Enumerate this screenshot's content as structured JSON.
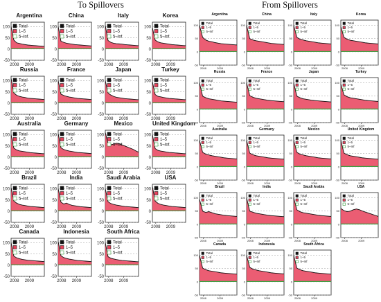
{
  "figure": {
    "left_title": "To Spillovers",
    "right_title": "From Spillovers"
  },
  "chart_data": {
    "type": "area",
    "panels_per_figure": 19,
    "countries": [
      "Argentina",
      "China",
      "Italy",
      "Korea",
      "Russia",
      "France",
      "Japan",
      "Turkey",
      "Australia",
      "Germany",
      "Mexico",
      "United Kingdom",
      "Brazil",
      "India",
      "Saudi Arabia",
      "USA",
      "Canada",
      "Indonesia",
      "South Africa"
    ],
    "series_names": [
      "Total",
      "1–5",
      "5–Inf"
    ],
    "series_colors": {
      "Total": "#111111",
      "1–5": "#e8415a",
      "5–Inf": "#3aa040"
    },
    "x_ticks": [
      "2008",
      "2009"
    ],
    "y_ticks": [
      100,
      50,
      0,
      -50
    ],
    "ylim": [
      -50,
      120
    ],
    "x": [
      0,
      1,
      2,
      3,
      4,
      5,
      6,
      7,
      8,
      9,
      10,
      11,
      12
    ],
    "to_spillovers": {
      "Argentina": [
        100,
        40,
        28,
        25,
        22,
        20,
        18,
        17,
        16,
        15,
        14,
        13,
        12
      ],
      "China": [
        100,
        35,
        30,
        26,
        24,
        22,
        20,
        19,
        18,
        17,
        16,
        15,
        14
      ],
      "Italy": [
        105,
        38,
        30,
        26,
        24,
        23,
        22,
        20,
        19,
        18,
        17,
        16,
        15
      ],
      "Korea": [
        95,
        40,
        32,
        28,
        26,
        24,
        22,
        20,
        19,
        18,
        17,
        16,
        15
      ],
      "Russia": [
        110,
        45,
        35,
        30,
        27,
        25,
        22,
        21,
        20,
        19,
        18,
        17,
        16
      ],
      "France": [
        100,
        40,
        34,
        30,
        27,
        25,
        23,
        21,
        20,
        19,
        18,
        17,
        16
      ],
      "Japan": [
        100,
        45,
        36,
        30,
        26,
        24,
        22,
        20,
        19,
        18,
        17,
        16,
        15
      ],
      "Turkey": [
        95,
        38,
        30,
        28,
        25,
        23,
        21,
        20,
        19,
        18,
        17,
        16,
        15
      ],
      "Australia": [
        100,
        40,
        32,
        28,
        26,
        24,
        22,
        20,
        19,
        18,
        17,
        16,
        15
      ],
      "Germany": [
        105,
        42,
        34,
        30,
        27,
        25,
        23,
        21,
        20,
        19,
        18,
        17,
        16
      ],
      "Mexico": [
        110,
        60,
        55,
        58,
        62,
        60,
        55,
        50,
        45,
        40,
        35,
        28,
        22
      ],
      "United Kingdom": [
        100,
        38,
        30,
        27,
        25,
        23,
        21,
        20,
        19,
        18,
        17,
        16,
        15
      ],
      "Brazil": [
        105,
        45,
        36,
        30,
        27,
        25,
        23,
        21,
        20,
        19,
        18,
        17,
        16
      ],
      "India": [
        100,
        40,
        32,
        36,
        30,
        26,
        24,
        22,
        20,
        19,
        18,
        17,
        16
      ],
      "Saudi Arabia": [
        100,
        42,
        34,
        30,
        27,
        25,
        23,
        21,
        20,
        19,
        18,
        17,
        16
      ],
      "USA": [
        110,
        45,
        35,
        30,
        27,
        25,
        23,
        21,
        20,
        19,
        18,
        17,
        16
      ],
      "Canada": [
        100,
        40,
        33,
        29,
        26,
        24,
        22,
        21,
        20,
        19,
        18,
        17,
        16
      ],
      "Indonesia": [
        105,
        42,
        34,
        30,
        27,
        25,
        23,
        21,
        20,
        19,
        18,
        17,
        16
      ],
      "South Africa": [
        100,
        38,
        31,
        28,
        25,
        23,
        21,
        20,
        19,
        18,
        17,
        16,
        15
      ]
    },
    "from_spillovers": {
      "Argentina": [
        100,
        55,
        45,
        40,
        38,
        35,
        33,
        31,
        30,
        29,
        28,
        27,
        26
      ],
      "China": [
        100,
        50,
        45,
        42,
        40,
        38,
        36,
        34,
        32,
        31,
        30,
        29,
        28
      ],
      "Italy": [
        100,
        55,
        48,
        45,
        42,
        40,
        38,
        36,
        34,
        33,
        32,
        31,
        30
      ],
      "Korea": [
        95,
        55,
        48,
        44,
        42,
        40,
        38,
        36,
        34,
        33,
        32,
        31,
        30
      ],
      "Russia": [
        100,
        50,
        44,
        40,
        38,
        36,
        34,
        32,
        31,
        30,
        29,
        28,
        27
      ],
      "France": [
        100,
        52,
        46,
        42,
        40,
        38,
        36,
        34,
        33,
        32,
        31,
        30,
        29
      ],
      "Japan": [
        100,
        50,
        44,
        40,
        38,
        36,
        34,
        33,
        32,
        31,
        30,
        29,
        28
      ],
      "Turkey": [
        95,
        55,
        48,
        44,
        42,
        40,
        38,
        36,
        34,
        33,
        32,
        31,
        30
      ],
      "Australia": [
        100,
        55,
        48,
        45,
        42,
        40,
        38,
        36,
        34,
        33,
        32,
        31,
        30
      ],
      "Germany": [
        100,
        52,
        46,
        42,
        40,
        38,
        36,
        34,
        33,
        32,
        31,
        30,
        29
      ],
      "Mexico": [
        100,
        55,
        48,
        45,
        42,
        40,
        38,
        36,
        34,
        33,
        32,
        31,
        30
      ],
      "United Kingdom": [
        100,
        52,
        46,
        42,
        40,
        38,
        36,
        34,
        33,
        32,
        31,
        30,
        29
      ],
      "Brazil": [
        95,
        50,
        45,
        48,
        44,
        40,
        38,
        36,
        34,
        33,
        32,
        31,
        30
      ],
      "India": [
        100,
        50,
        46,
        42,
        40,
        38,
        36,
        34,
        33,
        32,
        31,
        30,
        29
      ],
      "Saudi Arabia": [
        100,
        55,
        48,
        44,
        42,
        40,
        38,
        36,
        34,
        33,
        32,
        31,
        30
      ],
      "USA": [
        60,
        52,
        48,
        50,
        55,
        58,
        55,
        50,
        46,
        42,
        38,
        34,
        30
      ],
      "Canada": [
        100,
        52,
        46,
        42,
        40,
        38,
        36,
        34,
        33,
        32,
        31,
        30,
        29
      ],
      "Indonesia": [
        100,
        55,
        48,
        45,
        42,
        40,
        38,
        36,
        34,
        33,
        32,
        31,
        30
      ],
      "South Africa": [
        100,
        52,
        46,
        42,
        40,
        38,
        36,
        34,
        33,
        32,
        31,
        30,
        29
      ]
    }
  }
}
